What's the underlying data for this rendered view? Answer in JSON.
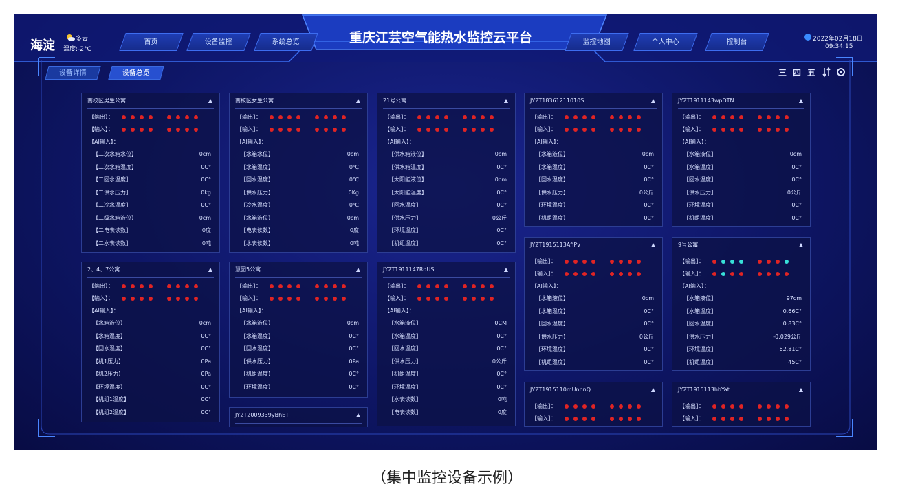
{
  "header": {
    "location": "海淀",
    "weather": "多云",
    "temperature": "温度:-2°C",
    "nav_left": [
      "首页",
      "设备监控",
      "系统总览"
    ],
    "title": "重庆江芸空气能热水监控云平台",
    "nav_right": [
      "监控地图",
      "个人中心",
      "控制台"
    ],
    "date": "2022年02月18日",
    "time": "09:34:15"
  },
  "tabs": [
    "设备详情",
    "设备总览"
  ],
  "toolbar": [
    "三",
    "四",
    "五"
  ],
  "labels": {
    "output": "【输出】：",
    "input": "【输入】：",
    "ai": "【AI输入】："
  },
  "cards": [
    {
      "title": "南校区男生公寓",
      "outputs": [
        0,
        0,
        0,
        0,
        0,
        0,
        0,
        0
      ],
      "inputs": [
        0,
        0,
        0,
        0,
        0,
        0,
        0,
        0
      ],
      "rows": [
        [
          "【二次水箱水位】",
          "0cm"
        ],
        [
          "【二次水箱温度】",
          "0C°"
        ],
        [
          "【二回水温度】",
          "0C°"
        ],
        [
          "【二供水压力】",
          "0kg"
        ],
        [
          "【二冷水温度】",
          "0C°"
        ],
        [
          "【二级水箱液位】",
          "0cm"
        ],
        [
          "【二电表读数】",
          "0度"
        ],
        [
          "【二水表读数】",
          "0吨"
        ]
      ]
    },
    {
      "title": "2、4、7公寓",
      "outputs": [
        0,
        0,
        0,
        0,
        0,
        0,
        0,
        0
      ],
      "inputs": [
        0,
        0,
        0,
        0,
        0,
        0,
        0,
        0
      ],
      "rows": [
        [
          "【水箱液位】",
          "0cm"
        ],
        [
          "【水箱温度】",
          "0C°"
        ],
        [
          "【回水温度】",
          "0C°"
        ],
        [
          "【机1压力】",
          "0Pa"
        ],
        [
          "【机2压力】",
          "0Pa"
        ],
        [
          "【环境温度】",
          "0C°"
        ],
        [
          "【机组1温度】",
          "0C°"
        ],
        [
          "【机组2温度】",
          "0C°"
        ]
      ]
    },
    {
      "title": "南校区女生公寓",
      "outputs": [
        0,
        0,
        0,
        0,
        0,
        0,
        0,
        0
      ],
      "inputs": [
        0,
        0,
        0,
        0,
        0,
        0,
        0,
        0
      ],
      "rows": [
        [
          "【水箱水位】",
          "0cm"
        ],
        [
          "【水箱温度】",
          "0℃"
        ],
        [
          "【回水温度】",
          "0℃"
        ],
        [
          "【供水压力】",
          "0Kg"
        ],
        [
          "【冷水温度】",
          "0℃"
        ],
        [
          "【水箱液位】",
          "0cm"
        ],
        [
          "【电表读数】",
          "0度"
        ],
        [
          "【水表读数】",
          "0吨"
        ]
      ]
    },
    {
      "title": "慧园5公寓",
      "outputs": [
        0,
        0,
        0,
        0,
        0,
        0,
        0,
        0
      ],
      "inputs": [
        0,
        0,
        0,
        0,
        0,
        0,
        0,
        0
      ],
      "rows": [
        [
          "【水箱液位】",
          "0cm"
        ],
        [
          "【水箱温度】",
          "0C°"
        ],
        [
          "【回水温度】",
          "0C°"
        ],
        [
          "【供水压力】",
          "0Pa"
        ],
        [
          "【机组温度】",
          "0C°"
        ],
        [
          "【环境温度】",
          "0C°"
        ]
      ]
    },
    {
      "title": "JY2T2009339yBhET"
    },
    {
      "title": "21号公寓",
      "outputs": [
        0,
        0,
        0,
        0,
        0,
        0,
        0,
        0
      ],
      "inputs": [
        0,
        0,
        0,
        0,
        0,
        0,
        0,
        0
      ],
      "rows": [
        [
          "【供水箱液位】",
          "0cm"
        ],
        [
          "【供水箱温度】",
          "0C°"
        ],
        [
          "【太阳能液位】",
          "0cm"
        ],
        [
          "【太阳能温度】",
          "0C°"
        ],
        [
          "【回水温度】",
          "0C°"
        ],
        [
          "【供水压力】",
          "0公斤"
        ],
        [
          "【环境温度】",
          "0C°"
        ],
        [
          "【机组温度】",
          "0C°"
        ]
      ]
    },
    {
      "title": "JY2T1911147RqUSL",
      "outputs": [
        0,
        0,
        0,
        0,
        0,
        0,
        0,
        0
      ],
      "inputs": [
        0,
        0,
        0,
        0,
        0,
        0,
        0,
        0
      ],
      "rows": [
        [
          "【水箱液位】",
          "0CM"
        ],
        [
          "【水箱温度】",
          "0C°"
        ],
        [
          "【回水温度】",
          "0C°"
        ],
        [
          "【供水压力】",
          "0公斤"
        ],
        [
          "【机组温度】",
          "0C°"
        ],
        [
          "【环境温度】",
          "0C°"
        ],
        [
          "【水表读数】",
          "0吨"
        ],
        [
          "【电表读数】",
          "0度"
        ]
      ]
    },
    {
      "title": "JY2T18361211010S",
      "outputs": [
        0,
        0,
        0,
        0,
        0,
        0,
        0,
        0
      ],
      "inputs": [
        0,
        0,
        0,
        0,
        0,
        0,
        0,
        0
      ],
      "rows": [
        [
          "【水箱液位】",
          "0cm"
        ],
        [
          "【水箱温度】",
          "0C°"
        ],
        [
          "【回水温度】",
          "0C°"
        ],
        [
          "【供水压力】",
          "0公斤"
        ],
        [
          "【环境温度】",
          "0C°"
        ],
        [
          "【机组温度】",
          "0C°"
        ]
      ]
    },
    {
      "title": "JY2T1915113AfiPv",
      "outputs": [
        0,
        0,
        0,
        0,
        0,
        0,
        0,
        0
      ],
      "inputs": [
        0,
        0,
        0,
        0,
        0,
        0,
        0,
        0
      ],
      "rows": [
        [
          "【水箱液位】",
          "0cm"
        ],
        [
          "【水箱温度】",
          "0C°"
        ],
        [
          "【回水温度】",
          "0C°"
        ],
        [
          "【供水压力】",
          "0公斤"
        ],
        [
          "【环境温度】",
          "0C°"
        ],
        [
          "【机组温度】",
          "0C°"
        ]
      ]
    },
    {
      "title": "JY2T1915110mUnnnQ",
      "outputs": [
        0,
        0,
        0,
        0,
        0,
        0,
        0,
        0
      ],
      "inputs": [
        0,
        0,
        0,
        0,
        0,
        0,
        0,
        0
      ]
    },
    {
      "title": "JY2T1911143wpDTN",
      "outputs": [
        0,
        0,
        0,
        0,
        0,
        0,
        0,
        0
      ],
      "inputs": [
        0,
        0,
        0,
        0,
        0,
        0,
        0,
        0
      ],
      "rows": [
        [
          "【水箱液位】",
          "0cm"
        ],
        [
          "【水箱温度】",
          "0C°"
        ],
        [
          "【回水温度】",
          "0C°"
        ],
        [
          "【供水压力】",
          "0公斤"
        ],
        [
          "【环境温度】",
          "0C°"
        ],
        [
          "【机组温度】",
          "0C°"
        ]
      ]
    },
    {
      "title": "9号公寓",
      "outputs": [
        0,
        1,
        1,
        1,
        0,
        0,
        0,
        1
      ],
      "inputs": [
        0,
        1,
        0,
        0,
        0,
        0,
        0,
        0
      ],
      "rows": [
        [
          "【水箱液位】",
          "97cm"
        ],
        [
          "【水箱温度】",
          "0.66C°"
        ],
        [
          "【回水温度】",
          "0.83C°"
        ],
        [
          "【供水压力】",
          "-0.029公斤"
        ],
        [
          "【环境温度】",
          "62.81C°"
        ],
        [
          "【机组温度】",
          "45C°"
        ]
      ]
    },
    {
      "title": "JY2T1915113hbYat",
      "outputs": [
        0,
        0,
        0,
        0,
        0,
        0,
        0,
        0
      ],
      "inputs": [
        0,
        0,
        0,
        0,
        0,
        0,
        0,
        0
      ]
    }
  ],
  "caption": "（集中监控设备示例）"
}
